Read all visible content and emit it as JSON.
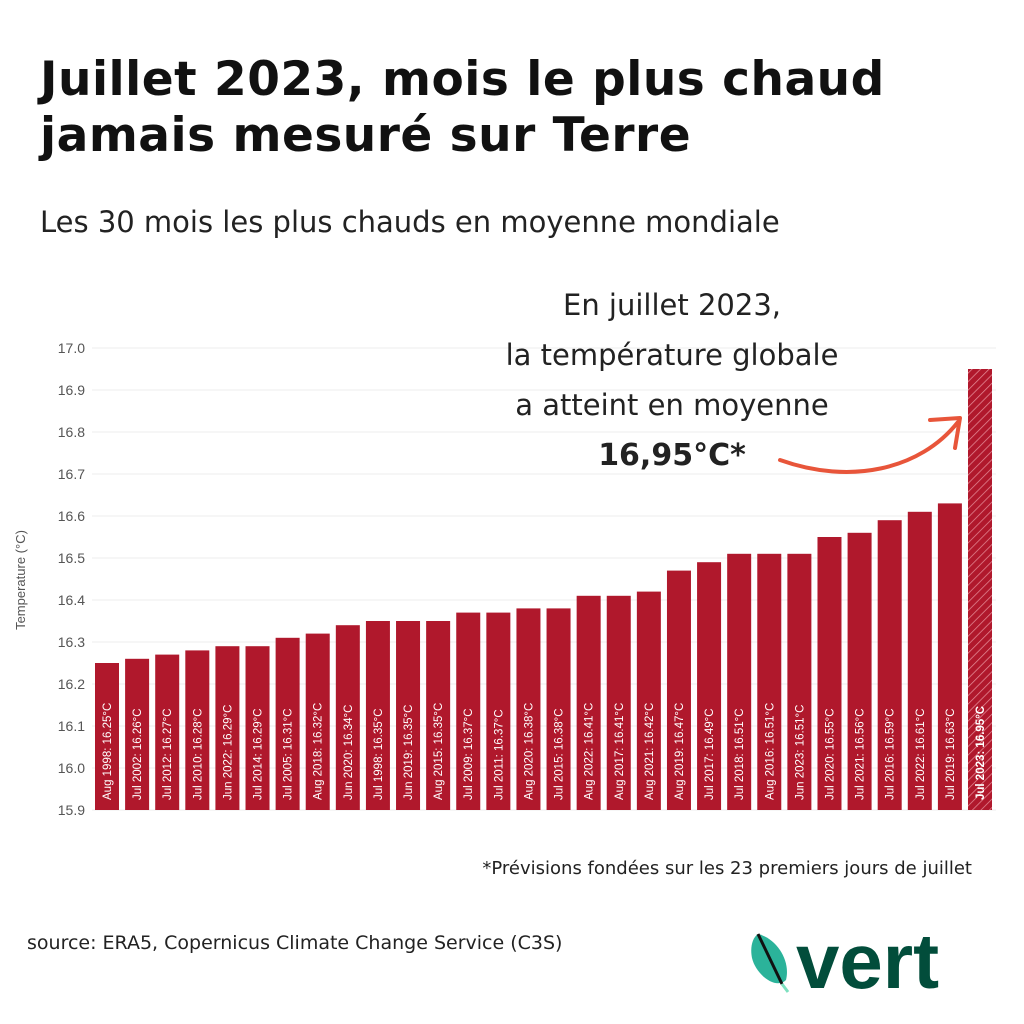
{
  "title_line1": "Juillet 2023, mois le plus chaud",
  "title_line2": "jamais mesuré sur Terre",
  "subtitle": "Les 30 mois les plus chauds en moyenne mondiale",
  "annotation": {
    "line1": "En juillet 2023,",
    "line2": "la température globale",
    "line3": "a atteint en moyenne",
    "highlight": "16,95°C*"
  },
  "footnote": "*Prévisions fondées sur les 23 premiers jours de juillet",
  "source": "source: ERA5, Copernicus Climate Change Service (C3S)",
  "logo_text": "vert",
  "colors": {
    "bar": "#b0182c",
    "highlight_bar": "#b0182c",
    "arrow": "#e8553a",
    "logo": "#024d3b"
  },
  "chart_data": {
    "type": "bar",
    "ylabel": "Temperature (°C)",
    "xlabel": "",
    "ylim": [
      15.9,
      17.0
    ],
    "yticks": [
      "15.9",
      "16.0",
      "16.1",
      "16.2",
      "16.3",
      "16.4",
      "16.5",
      "16.6",
      "16.7",
      "16.8",
      "16.9",
      "17.0"
    ],
    "grid": true,
    "categories": [
      "Aug 1998",
      "Jul 2002",
      "Jul 2012",
      "Jul 2010",
      "Jun 2022",
      "Jul 2014",
      "Jul 2005",
      "Aug 2018",
      "Jun 2020",
      "Jul 1998",
      "Jun 2019",
      "Aug 2015",
      "Jul 2009",
      "Jul 2011",
      "Aug 2020",
      "Jul 2015",
      "Aug 2022",
      "Aug 2017",
      "Aug 2021",
      "Aug 2019",
      "Jul 2017",
      "Jul 2018",
      "Aug 2016",
      "Jun 2023",
      "Jul 2020",
      "Jul 2021",
      "Jul 2016",
      "Jul 2022",
      "Jul 2019",
      "Jul 2023"
    ],
    "values": [
      16.25,
      16.26,
      16.27,
      16.28,
      16.29,
      16.29,
      16.31,
      16.32,
      16.34,
      16.35,
      16.35,
      16.35,
      16.37,
      16.37,
      16.38,
      16.38,
      16.41,
      16.41,
      16.42,
      16.47,
      16.49,
      16.51,
      16.51,
      16.51,
      16.55,
      16.56,
      16.59,
      16.61,
      16.63,
      16.95
    ],
    "labels": [
      "Aug 1998: 16.25°C",
      "Jul 2002: 16.26°C",
      "Jul 2012: 16.27°C",
      "Jul 2010: 16.28°C",
      "Jun 2022: 16.29°C",
      "Jul 2014: 16.29°C",
      "Jul 2005: 16.31°C",
      "Aug 2018: 16.32°C",
      "Jun 2020: 16.34°C",
      "Jul 1998: 16.35°C",
      "Jun 2019: 16.35°C",
      "Aug 2015: 16.35°C",
      "Jul 2009: 16.37°C",
      "Jul 2011: 16.37°C",
      "Aug 2020: 16.38°C",
      "Jul 2015: 16.38°C",
      "Aug 2022: 16.41°C",
      "Aug 2017: 16.41°C",
      "Aug 2021: 16.42°C",
      "Aug 2019: 16.47°C",
      "Jul 2017: 16.49°C",
      "Jul 2018: 16.51°C",
      "Aug 2016: 16.51°C",
      "Jun 2023: 16.51°C",
      "Jul 2020: 16.55°C",
      "Jul 2021: 16.56°C",
      "Jul 2016: 16.59°C",
      "Jul 2022: 16.61°C",
      "Jul 2019: 16.63°C",
      "Jul 2023: 16.95°C"
    ],
    "highlighted_index": 29
  }
}
